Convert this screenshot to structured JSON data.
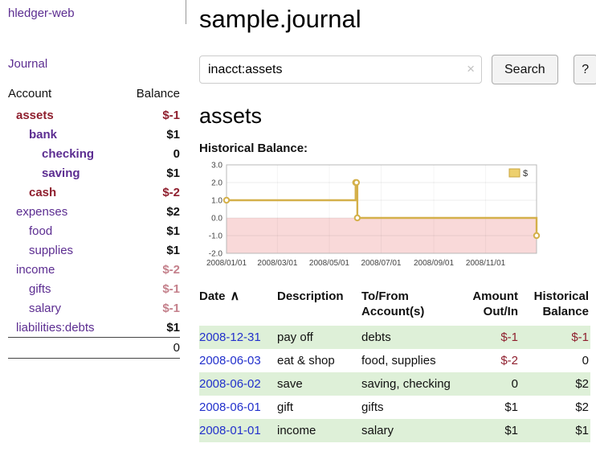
{
  "colors": {
    "link_purple": "#5c2d91",
    "negative_dark": "#8f1f2e",
    "negative_light": "#c4808b",
    "date_link": "#2230cc",
    "row_green": "#def0d8"
  },
  "sidebar": {
    "app_title": "hledger-web",
    "journal_link": "Journal",
    "accounts_header": {
      "account": "Account",
      "balance": "Balance"
    },
    "accounts": [
      {
        "name": "assets",
        "balance": "$-1",
        "indent": 0,
        "bold": true,
        "name_color": "red",
        "balance_color": "red"
      },
      {
        "name": "bank",
        "balance": "$1",
        "indent": 1,
        "bold": true,
        "name_color": "purple",
        "balance_color": "black"
      },
      {
        "name": "checking",
        "balance": "0",
        "indent": 2,
        "bold": true,
        "name_color": "purple",
        "balance_color": "black"
      },
      {
        "name": "saving",
        "balance": "$1",
        "indent": 2,
        "bold": true,
        "name_color": "purple",
        "balance_color": "black"
      },
      {
        "name": "cash",
        "balance": "$-2",
        "indent": 1,
        "bold": true,
        "name_color": "red",
        "balance_color": "red"
      },
      {
        "name": "expenses",
        "balance": "$2",
        "indent": 0,
        "bold": false,
        "name_color": "purple",
        "balance_color": "black"
      },
      {
        "name": "food",
        "balance": "$1",
        "indent": 1,
        "bold": false,
        "name_color": "purple",
        "balance_color": "black"
      },
      {
        "name": "supplies",
        "balance": "$1",
        "indent": 1,
        "bold": false,
        "name_color": "purple",
        "balance_color": "black"
      },
      {
        "name": "income",
        "balance": "$-2",
        "indent": 0,
        "bold": false,
        "name_color": "purple",
        "balance_color": "pink"
      },
      {
        "name": "gifts",
        "balance": "$-1",
        "indent": 1,
        "bold": false,
        "name_color": "purple",
        "balance_color": "pink"
      },
      {
        "name": "salary",
        "balance": "$-1",
        "indent": 1,
        "bold": false,
        "name_color": "purple",
        "balance_color": "pink"
      },
      {
        "name": "liabilities:debts",
        "balance": "$1",
        "indent": 0,
        "bold": false,
        "name_color": "purple",
        "balance_color": "black"
      }
    ],
    "total": "0"
  },
  "main": {
    "title": "sample.journal",
    "search": {
      "value": "inacct:assets",
      "clear_icon": "×",
      "button_label": "Search",
      "help_label": "?"
    },
    "section_title": "assets",
    "chart_label": "Historical Balance:"
  },
  "chart_data": {
    "type": "line",
    "title": "Historical Balance",
    "legend": "$",
    "legend_position": "top-right",
    "grid": true,
    "ylim": [
      -2,
      3
    ],
    "yticks": [
      "3.0",
      "2.0",
      "1.0",
      "0.0",
      "-1.0",
      "-2.0"
    ],
    "x_range": [
      "2008-01-01",
      "2008-12-31"
    ],
    "xticks": [
      {
        "label": "2008/01/01",
        "date": "2008-01-01"
      },
      {
        "label": "2008/03/01",
        "date": "2008-03-01"
      },
      {
        "label": "2008/05/01",
        "date": "2008-05-01"
      },
      {
        "label": "2008/07/01",
        "date": "2008-07-01"
      },
      {
        "label": "2008/09/01",
        "date": "2008-09-01"
      },
      {
        "label": "2008/11/01",
        "date": "2008-11-01"
      }
    ],
    "series": [
      {
        "name": "$",
        "points": [
          {
            "date": "2008-01-01",
            "value": 1
          },
          {
            "date": "2008-06-01",
            "value": 2
          },
          {
            "date": "2008-06-02",
            "value": 2
          },
          {
            "date": "2008-06-03",
            "value": 0
          },
          {
            "date": "2008-12-31",
            "value": -1
          }
        ]
      }
    ],
    "line_color": "#d4b04a",
    "negative_region_fill": "#f9d9d9",
    "legend_fill": "#edd06e",
    "legend_border": "#c9a53f"
  },
  "transactions": {
    "headers": {
      "date": "Date",
      "sort_icon": "∧",
      "description": "Description",
      "account": [
        "To/From",
        "Account(s)"
      ],
      "amount": [
        "Amount",
        "Out/In"
      ],
      "balance": [
        "Historical",
        "Balance"
      ]
    },
    "rows": [
      {
        "date": "2008-12-31",
        "description": "pay off",
        "accounts": "debts",
        "amount": "$-1",
        "amount_negative": true,
        "balance": "$-1",
        "balance_negative": true
      },
      {
        "date": "2008-06-03",
        "description": "eat & shop",
        "accounts": "food, supplies",
        "amount": "$-2",
        "amount_negative": true,
        "balance": "0",
        "balance_negative": false
      },
      {
        "date": "2008-06-02",
        "description": "save",
        "accounts": "saving, checking",
        "amount": "0",
        "amount_negative": false,
        "balance": "$2",
        "balance_negative": false
      },
      {
        "date": "2008-06-01",
        "description": "gift",
        "accounts": "gifts",
        "amount": "$1",
        "amount_negative": false,
        "balance": "$2",
        "balance_negative": false
      },
      {
        "date": "2008-01-01",
        "description": "income",
        "accounts": "salary",
        "amount": "$1",
        "amount_negative": false,
        "balance": "$1",
        "balance_negative": false
      }
    ]
  }
}
